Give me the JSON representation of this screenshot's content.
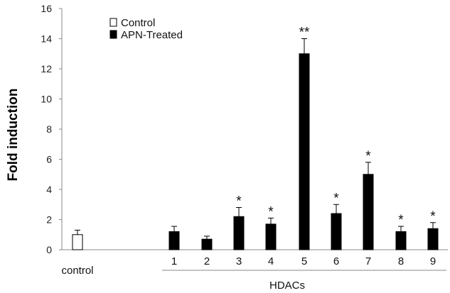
{
  "chart_data": {
    "type": "bar",
    "ylabel": "Fold induction",
    "ylim": [
      0,
      16
    ],
    "yticks": [
      0,
      2,
      4,
      6,
      8,
      10,
      12,
      14,
      16
    ],
    "legend": {
      "placement": "top-left",
      "entries": [
        {
          "label": "Control",
          "color": "#ffffff"
        },
        {
          "label": "APN-Treated",
          "color": "#000000"
        }
      ]
    },
    "group_label": "HDACs",
    "control_label": "control",
    "bars": [
      {
        "category": "",
        "series": "Control",
        "value": 1.0,
        "error": 0.3,
        "sig": ""
      },
      {
        "category": "1",
        "series": "APN-Treated",
        "value": 1.2,
        "error": 0.35,
        "sig": ""
      },
      {
        "category": "2",
        "series": "APN-Treated",
        "value": 0.7,
        "error": 0.2,
        "sig": ""
      },
      {
        "category": "3",
        "series": "APN-Treated",
        "value": 2.2,
        "error": 0.6,
        "sig": "*"
      },
      {
        "category": "4",
        "series": "APN-Treated",
        "value": 1.7,
        "error": 0.4,
        "sig": "*"
      },
      {
        "category": "5",
        "series": "APN-Treated",
        "value": 13.0,
        "error": 1.0,
        "sig": "**"
      },
      {
        "category": "6",
        "series": "APN-Treated",
        "value": 2.4,
        "error": 0.6,
        "sig": "*"
      },
      {
        "category": "7",
        "series": "APN-Treated",
        "value": 5.0,
        "error": 0.8,
        "sig": "*"
      },
      {
        "category": "8",
        "series": "APN-Treated",
        "value": 1.2,
        "error": 0.35,
        "sig": "*"
      },
      {
        "category": "9",
        "series": "APN-Treated",
        "value": 1.4,
        "error": 0.4,
        "sig": "*"
      }
    ],
    "grid": false
  }
}
